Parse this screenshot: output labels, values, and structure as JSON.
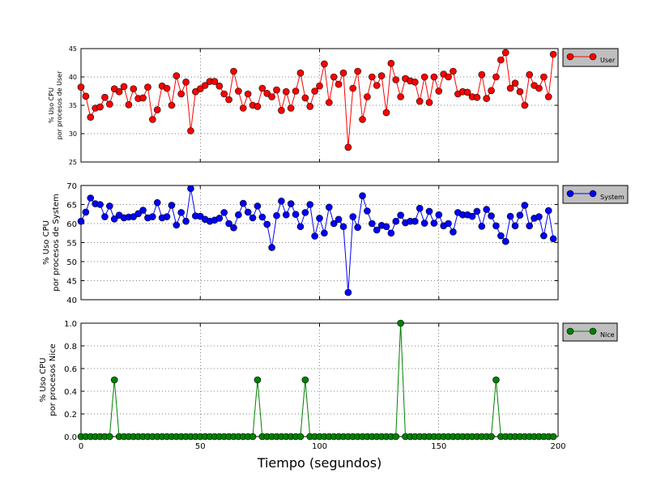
{
  "chart_data": [
    {
      "type": "line",
      "series": [
        {
          "name": "User",
          "color": "#ff0000",
          "marker_color": "#ff0000"
        }
      ],
      "ylabel_lines": [
        "% Uso CPU",
        "por procesos de User"
      ],
      "ylim": [
        25,
        45
      ],
      "yticks": [
        25,
        30,
        35,
        40,
        45
      ],
      "xlim": [
        0,
        200
      ],
      "grid": true,
      "legend": "right",
      "x": [
        0,
        2,
        4,
        6,
        8,
        10,
        12,
        14,
        16,
        18,
        20,
        22,
        24,
        26,
        28,
        30,
        32,
        34,
        36,
        38,
        40,
        42,
        44,
        46,
        48,
        50,
        52,
        54,
        56,
        58,
        60,
        62,
        64,
        66,
        68,
        70,
        72,
        74,
        76,
        78,
        80,
        82,
        84,
        86,
        88,
        90,
        92,
        94,
        96,
        98,
        100,
        102,
        104,
        106,
        108,
        110,
        112,
        114,
        116,
        118,
        120,
        122,
        124,
        126,
        128,
        130,
        132,
        134,
        136,
        138,
        140,
        142,
        144,
        146,
        148,
        150,
        152,
        154,
        156,
        158,
        160,
        162,
        164,
        166,
        168,
        170,
        172,
        174,
        176,
        178,
        180,
        182,
        184,
        186,
        188,
        190,
        192,
        194,
        196,
        198
      ],
      "values": [
        38.2,
        36.6,
        32.9,
        34.5,
        34.7,
        36.4,
        35.2,
        37.9,
        37.4,
        38.3,
        35.1,
        37.9,
        36.2,
        36.3,
        38.2,
        32.5,
        34.2,
        38.4,
        38.0,
        35.0,
        40.2,
        37.0,
        39.1,
        30.5,
        37.4,
        37.9,
        38.5,
        39.2,
        39.2,
        38.4,
        37.0,
        36.0,
        41.0,
        37.5,
        34.5,
        37.0,
        35.0,
        34.8,
        38.0,
        37.1,
        36.5,
        37.7,
        34.1,
        37.4,
        34.5,
        37.5,
        40.7,
        36.3,
        34.8,
        37.5,
        38.4,
        42.3,
        35.5,
        40.0,
        38.7,
        40.7,
        27.6,
        38.0,
        41.0,
        32.5,
        36.5,
        40.0,
        38.5,
        40.2,
        33.7,
        42.4,
        39.5,
        36.5,
        39.7,
        39.3,
        39.1,
        35.7,
        40.0,
        35.5,
        40.0,
        37.5,
        40.5,
        40.0,
        41.0,
        37.0,
        37.4,
        37.3,
        36.5,
        36.4,
        40.4,
        36.2,
        37.6,
        40.0,
        43.0,
        44.3,
        38.0,
        38.9,
        37.4,
        35.0,
        40.4,
        38.5,
        38.0,
        40.0,
        36.5,
        44.0
      ]
    },
    {
      "type": "line",
      "series": [
        {
          "name": "System",
          "color": "#0000ff",
          "marker_color": "#0000ff"
        }
      ],
      "ylabel_lines": [
        "% Uso CPU",
        "por procesos de System"
      ],
      "ylim": [
        40,
        70
      ],
      "yticks": [
        40,
        45,
        50,
        55,
        60,
        65,
        70
      ],
      "xlim": [
        0,
        200
      ],
      "grid": true,
      "legend": "right",
      "x": [
        0,
        2,
        4,
        6,
        8,
        10,
        12,
        14,
        16,
        18,
        20,
        22,
        24,
        26,
        28,
        30,
        32,
        34,
        36,
        38,
        40,
        42,
        44,
        46,
        48,
        50,
        52,
        54,
        56,
        58,
        60,
        62,
        64,
        66,
        68,
        70,
        72,
        74,
        76,
        78,
        80,
        82,
        84,
        86,
        88,
        90,
        92,
        94,
        96,
        98,
        100,
        102,
        104,
        106,
        108,
        110,
        112,
        114,
        116,
        118,
        120,
        122,
        124,
        126,
        128,
        130,
        132,
        134,
        136,
        138,
        140,
        142,
        144,
        146,
        148,
        150,
        152,
        154,
        156,
        158,
        160,
        162,
        164,
        166,
        168,
        170,
        172,
        174,
        176,
        178,
        180,
        182,
        184,
        186,
        188,
        190,
        192,
        194,
        196,
        198
      ],
      "values": [
        60.6,
        63.0,
        66.7,
        65.2,
        65.0,
        61.8,
        64.6,
        61.2,
        62.2,
        61.5,
        61.7,
        61.8,
        62.6,
        63.5,
        61.5,
        61.8,
        65.5,
        61.5,
        61.8,
        64.8,
        59.6,
        62.9,
        60.6,
        69.2,
        62.0,
        61.9,
        61.1,
        60.6,
        60.9,
        61.4,
        62.9,
        60.0,
        58.9,
        62.3,
        65.3,
        63.0,
        61.5,
        64.6,
        61.7,
        59.8,
        53.7,
        62.1,
        65.9,
        62.3,
        65.2,
        62.4,
        59.2,
        62.9,
        65.0,
        56.7,
        61.4,
        57.5,
        64.3,
        60.0,
        61.1,
        59.2,
        41.9,
        61.8,
        59.0,
        67.3,
        63.3,
        60.0,
        58.3,
        59.5,
        59.2,
        57.5,
        60.6,
        62.2,
        60.2,
        60.6,
        60.6,
        64.0,
        60.1,
        63.2,
        60.1,
        62.3,
        59.4,
        60.0,
        57.8,
        62.9,
        62.3,
        62.3,
        61.9,
        63.2,
        59.3,
        63.7,
        62.0,
        59.4,
        56.8,
        55.3,
        61.9,
        59.4,
        62.2,
        64.8,
        59.4,
        61.4,
        61.8,
        56.8,
        63.4,
        56.0
      ]
    },
    {
      "type": "line",
      "series": [
        {
          "name": "Nice",
          "color": "#008000",
          "marker_color": "#008000"
        }
      ],
      "ylabel_lines": [
        "% Uso CPU",
        "por procesos Nice"
      ],
      "ylim": [
        0.0,
        1.0
      ],
      "yticks": [
        0.0,
        0.2,
        0.4,
        0.6,
        0.8,
        1.0
      ],
      "ytick_labels": [
        "0.0",
        "0.2",
        "0.4",
        "0.6",
        "0.8",
        "1.0"
      ],
      "xlim": [
        0,
        200
      ],
      "xticks": [
        0,
        50,
        100,
        150,
        200
      ],
      "xlabel": "Tiempo (segundos)",
      "grid": true,
      "legend": "right",
      "x": [
        0,
        2,
        4,
        6,
        8,
        10,
        12,
        14,
        16,
        18,
        20,
        22,
        24,
        26,
        28,
        30,
        32,
        34,
        36,
        38,
        40,
        42,
        44,
        46,
        48,
        50,
        52,
        54,
        56,
        58,
        60,
        62,
        64,
        66,
        68,
        70,
        72,
        74,
        76,
        78,
        80,
        82,
        84,
        86,
        88,
        90,
        92,
        94,
        96,
        98,
        100,
        102,
        104,
        106,
        108,
        110,
        112,
        114,
        116,
        118,
        120,
        122,
        124,
        126,
        128,
        130,
        132,
        134,
        136,
        138,
        140,
        142,
        144,
        146,
        148,
        150,
        152,
        154,
        156,
        158,
        160,
        162,
        164,
        166,
        168,
        170,
        172,
        174,
        176,
        178,
        180,
        182,
        184,
        186,
        188,
        190,
        192,
        194,
        196,
        198
      ],
      "values": [
        0,
        0,
        0,
        0,
        0,
        0,
        0,
        0.5,
        0,
        0,
        0,
        0,
        0,
        0,
        0,
        0,
        0,
        0,
        0,
        0,
        0,
        0,
        0,
        0,
        0,
        0,
        0,
        0,
        0,
        0,
        0,
        0,
        0,
        0,
        0,
        0,
        0,
        0.5,
        0,
        0,
        0,
        0,
        0,
        0,
        0,
        0,
        0,
        0.5,
        0,
        0,
        0,
        0,
        0,
        0,
        0,
        0,
        0,
        0,
        0,
        0,
        0,
        0,
        0,
        0,
        0,
        0,
        0,
        1.0,
        0,
        0,
        0,
        0,
        0,
        0,
        0,
        0,
        0,
        0,
        0,
        0,
        0,
        0,
        0,
        0,
        0,
        0,
        0,
        0.5,
        0,
        0,
        0,
        0,
        0,
        0,
        0,
        0,
        0,
        0,
        0,
        0
      ]
    }
  ]
}
